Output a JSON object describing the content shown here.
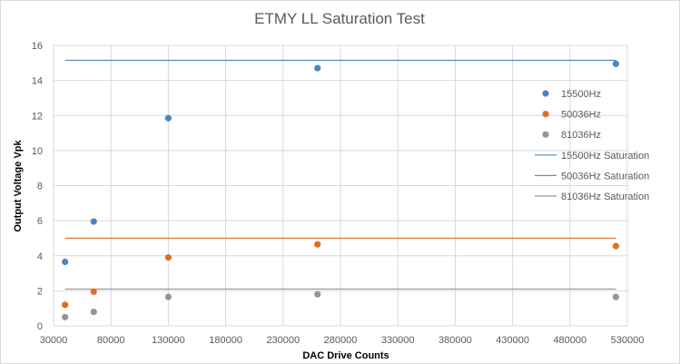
{
  "chart_data": {
    "type": "scatter",
    "title": "ETMY LL Saturation Test",
    "xlabel": "DAC Drive Counts",
    "ylabel": "Output Voltage Vpk",
    "xlim": [
      30000,
      530000
    ],
    "ylim": [
      0,
      16
    ],
    "x_ticks": [
      30000,
      80000,
      130000,
      180000,
      230000,
      280000,
      330000,
      380000,
      430000,
      480000,
      530000
    ],
    "y_ticks": [
      0,
      2,
      4,
      6,
      8,
      10,
      12,
      14,
      16
    ],
    "grid": true,
    "legend_position": "right",
    "series": [
      {
        "name": "15500Hz",
        "kind": "points",
        "color": "#4a86bf",
        "x": [
          40000,
          65000,
          130000,
          260000,
          520000
        ],
        "y": [
          3.65,
          5.95,
          11.85,
          14.7,
          14.95
        ]
      },
      {
        "name": "50036Hz",
        "kind": "points",
        "color": "#e36c25",
        "x": [
          40000,
          65000,
          130000,
          260000,
          520000
        ],
        "y": [
          1.2,
          1.95,
          3.9,
          4.65,
          4.55
        ]
      },
      {
        "name": "81036Hz",
        "kind": "points",
        "color": "#959595",
        "x": [
          40000,
          65000,
          130000,
          260000,
          520000
        ],
        "y": [
          0.5,
          0.8,
          1.65,
          1.8,
          1.65
        ]
      },
      {
        "name": "15500Hz Saturation",
        "kind": "line",
        "color": "#4a86bf",
        "x": [
          40000,
          520000
        ],
        "y": [
          15.15,
          15.15
        ]
      },
      {
        "name": "50036Hz Saturation",
        "kind": "line",
        "color": "#e36c25",
        "x": [
          40000,
          520000
        ],
        "y": [
          5.0,
          5.0
        ]
      },
      {
        "name": "81036Hz Saturation",
        "kind": "line",
        "color": "#959595",
        "x": [
          40000,
          520000
        ],
        "y": [
          2.1,
          2.1
        ]
      }
    ]
  }
}
